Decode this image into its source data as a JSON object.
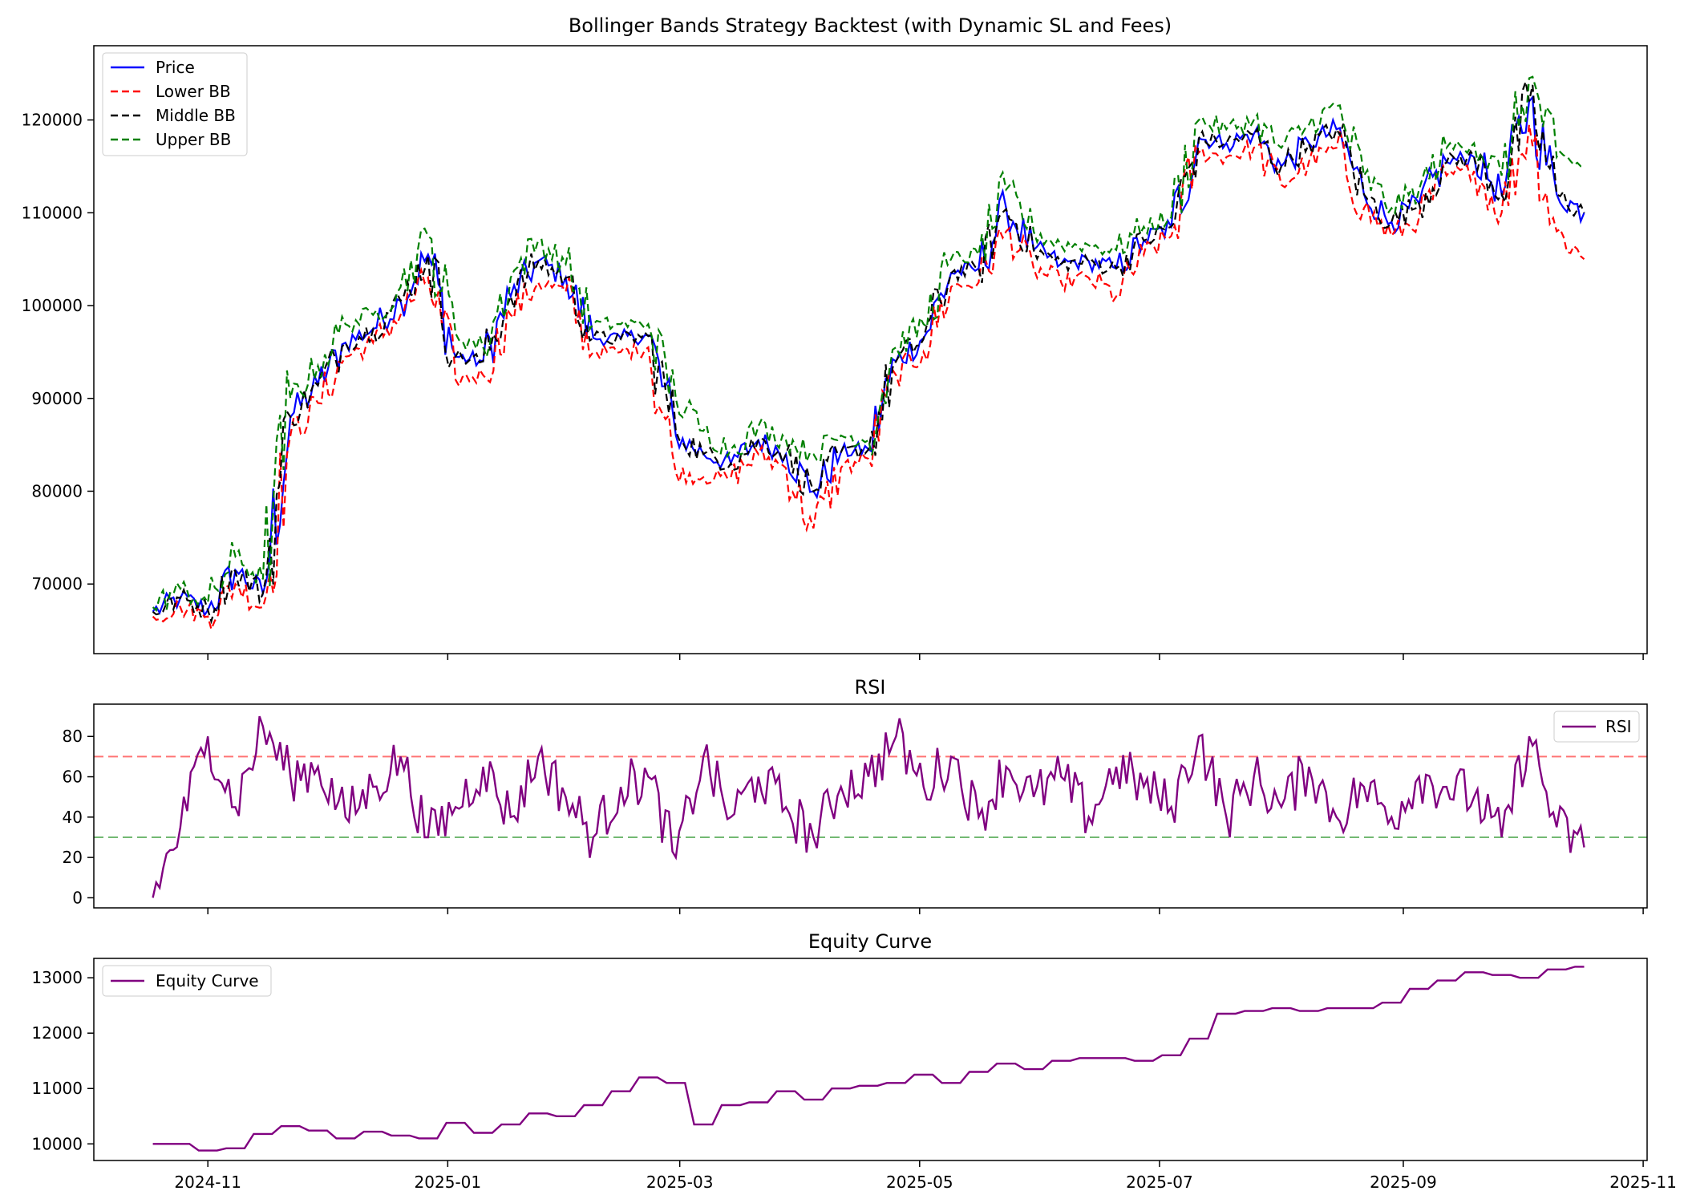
{
  "chart_data": [
    {
      "type": "line",
      "title": "Bollinger Bands Strategy Backtest (with Dynamic SL and Fees)",
      "xlabel": "",
      "ylabel": "",
      "ylim": [
        62500,
        128000
      ],
      "yticks": [
        70000,
        80000,
        90000,
        100000,
        110000,
        120000
      ],
      "grid": false,
      "legend_position": "upper-left",
      "colors": {
        "price": "#0000ff",
        "lower": "#ff0000",
        "middle": "#000000",
        "upper": "#008000",
        "buy_marker": "#0000ff",
        "sell_marker": "#ff0000",
        "exit_marker": "#008000"
      },
      "x_dates": [
        "2024-10-18",
        "2024-10-25",
        "2024-11-01",
        "2024-11-08",
        "2024-11-15",
        "2024-11-22",
        "2024-11-29",
        "2024-12-06",
        "2024-12-13",
        "2024-12-20",
        "2024-12-27",
        "2025-01-03",
        "2025-01-10",
        "2025-01-17",
        "2025-01-24",
        "2025-01-31",
        "2025-02-07",
        "2025-02-14",
        "2025-02-21",
        "2025-02-28",
        "2025-03-07",
        "2025-03-14",
        "2025-03-21",
        "2025-03-28",
        "2025-04-04",
        "2025-04-11",
        "2025-04-18",
        "2025-04-25",
        "2025-05-02",
        "2025-05-09",
        "2025-05-16",
        "2025-05-23",
        "2025-05-30",
        "2025-06-06",
        "2025-06-13",
        "2025-06-20",
        "2025-06-27",
        "2025-07-04",
        "2025-07-11",
        "2025-07-18",
        "2025-07-25",
        "2025-08-01",
        "2025-08-08",
        "2025-08-15",
        "2025-08-22",
        "2025-08-29",
        "2025-09-05",
        "2025-09-12",
        "2025-09-19",
        "2025-09-26",
        "2025-10-03",
        "2025-10-10",
        "2025-10-17"
      ],
      "series": [
        {
          "name": "Price",
          "style": "solid",
          "values": [
            67000,
            68500,
            67200,
            71500,
            69000,
            88000,
            91500,
            96000,
            97500,
            100500,
            105500,
            94500,
            94000,
            101000,
            104800,
            103000,
            96500,
            96500,
            96800,
            86000,
            84000,
            83000,
            85500,
            84000,
            80000,
            84200,
            84500,
            94000,
            96500,
            103500,
            104000,
            110500,
            106000,
            104500,
            104800,
            104000,
            107000,
            108500,
            118000,
            117500,
            118500,
            115000,
            117500,
            119000,
            112000,
            109000,
            111000,
            115500,
            116000,
            112000,
            122000,
            112000,
            110000
          ]
        },
        {
          "name": "Lower BB",
          "style": "dashed",
          "values": [
            66500,
            67500,
            66500,
            70000,
            67500,
            86000,
            89500,
            94500,
            96000,
            99000,
            103000,
            92000,
            92500,
            99000,
            102500,
            101500,
            95000,
            95000,
            95500,
            82000,
            81500,
            81500,
            84000,
            82500,
            76000,
            82500,
            83500,
            92500,
            95000,
            102000,
            102500,
            108000,
            104000,
            102500,
            103000,
            101000,
            105500,
            107500,
            116500,
            116000,
            117000,
            113000,
            115500,
            117000,
            110500,
            107500,
            109500,
            114000,
            114500,
            110000,
            119500,
            108000,
            105000
          ]
        },
        {
          "name": "Middle BB",
          "style": "dashed",
          "values": [
            67000,
            68500,
            67200,
            71400,
            69000,
            88000,
            91400,
            96000,
            97400,
            100500,
            105400,
            94500,
            94000,
            101000,
            104700,
            103000,
            96500,
            96400,
            96700,
            86500,
            84000,
            83000,
            85500,
            84000,
            80000,
            84200,
            84500,
            94000,
            96400,
            103500,
            104000,
            110400,
            106000,
            104500,
            104700,
            104000,
            107000,
            108500,
            118000,
            117500,
            118400,
            115000,
            117400,
            119000,
            112000,
            109000,
            111000,
            115400,
            116000,
            112000,
            122000,
            112000,
            110000
          ]
        },
        {
          "name": "Upper BB",
          "style": "dashed",
          "values": [
            67500,
            69500,
            68000,
            73000,
            70500,
            90000,
            93500,
            98000,
            99000,
            102000,
            107500,
            97000,
            95500,
            103000,
            107000,
            104500,
            98000,
            98000,
            98000,
            90000,
            86500,
            84500,
            87000,
            85500,
            84000,
            86000,
            85500,
            95500,
            98000,
            105000,
            105500,
            112500,
            108000,
            106500,
            106500,
            106000,
            108500,
            109500,
            120000,
            119000,
            120000,
            117000,
            119500,
            121500,
            114000,
            110500,
            112500,
            117000,
            117500,
            114000,
            124500,
            116000,
            115000
          ]
        }
      ]
    },
    {
      "type": "line",
      "title": "RSI",
      "xlabel": "",
      "ylabel": "",
      "ylim": [
        -5,
        96
      ],
      "yticks": [
        0,
        20,
        40,
        60,
        80
      ],
      "grid": false,
      "legend_position": "upper-right",
      "reference_lines": [
        {
          "y": 70,
          "color": "#ff0000"
        },
        {
          "y": 30,
          "color": "#008000"
        }
      ],
      "colors": {
        "rsi": "#800080"
      },
      "x_dates": [
        "2024-10-18",
        "2024-10-25",
        "2024-11-01",
        "2024-11-08",
        "2024-11-15",
        "2024-11-22",
        "2024-11-29",
        "2024-12-06",
        "2024-12-13",
        "2024-12-20",
        "2024-12-27",
        "2025-01-03",
        "2025-01-10",
        "2025-01-17",
        "2025-01-24",
        "2025-01-31",
        "2025-02-07",
        "2025-02-14",
        "2025-02-21",
        "2025-02-28",
        "2025-03-07",
        "2025-03-14",
        "2025-03-21",
        "2025-03-28",
        "2025-04-04",
        "2025-04-11",
        "2025-04-18",
        "2025-04-25",
        "2025-05-02",
        "2025-05-09",
        "2025-05-16",
        "2025-05-23",
        "2025-05-30",
        "2025-06-06",
        "2025-06-13",
        "2025-06-20",
        "2025-06-27",
        "2025-07-04",
        "2025-07-11",
        "2025-07-18",
        "2025-07-25",
        "2025-08-01",
        "2025-08-08",
        "2025-08-15",
        "2025-08-22",
        "2025-08-29",
        "2025-09-05",
        "2025-09-12",
        "2025-09-19",
        "2025-09-26",
        "2025-10-03",
        "2025-10-10",
        "2025-10-17"
      ],
      "series": [
        {
          "name": "RSI",
          "values": [
            0,
            35,
            80,
            45,
            85,
            60,
            65,
            40,
            55,
            70,
            30,
            45,
            65,
            40,
            70,
            50,
            30,
            55,
            60,
            20,
            70,
            40,
            60,
            45,
            30,
            55,
            60,
            80,
            55,
            70,
            40,
            65,
            50,
            60,
            40,
            65,
            55,
            45,
            80,
            40,
            60,
            45,
            65,
            40,
            55,
            40,
            60,
            55,
            50,
            30,
            80,
            35,
            25
          ]
        }
      ]
    },
    {
      "type": "line",
      "title": "Equity Curve",
      "xlabel": "",
      "ylabel": "",
      "ylim": [
        9700,
        13350
      ],
      "yticks": [
        10000,
        11000,
        12000,
        13000
      ],
      "grid": false,
      "legend_position": "upper-left",
      "colors": {
        "equity": "#800080"
      },
      "x_dates": [
        "2024-10-18",
        "2024-10-25",
        "2024-11-01",
        "2024-11-08",
        "2024-11-15",
        "2024-11-22",
        "2024-11-29",
        "2024-12-06",
        "2024-12-13",
        "2024-12-20",
        "2024-12-27",
        "2025-01-03",
        "2025-01-10",
        "2025-01-17",
        "2025-01-24",
        "2025-01-31",
        "2025-02-07",
        "2025-02-14",
        "2025-02-21",
        "2025-02-28",
        "2025-03-07",
        "2025-03-14",
        "2025-03-21",
        "2025-03-28",
        "2025-04-04",
        "2025-04-11",
        "2025-04-18",
        "2025-04-25",
        "2025-05-02",
        "2025-05-09",
        "2025-05-16",
        "2025-05-23",
        "2025-05-30",
        "2025-06-06",
        "2025-06-13",
        "2025-06-20",
        "2025-06-27",
        "2025-07-04",
        "2025-07-11",
        "2025-07-18",
        "2025-07-25",
        "2025-08-01",
        "2025-08-08",
        "2025-08-15",
        "2025-08-22",
        "2025-08-29",
        "2025-09-05",
        "2025-09-12",
        "2025-09-19",
        "2025-09-26",
        "2025-10-03",
        "2025-10-10",
        "2025-10-17"
      ],
      "series": [
        {
          "name": "Equity Curve",
          "values": [
            10000,
            10000,
            9880,
            9920,
            10180,
            10320,
            10240,
            10100,
            10220,
            10150,
            10100,
            10380,
            10200,
            10350,
            10550,
            10500,
            10700,
            10950,
            11200,
            11100,
            10350,
            10700,
            10750,
            10950,
            10800,
            11000,
            11050,
            11100,
            11250,
            11100,
            11300,
            11450,
            11350,
            11500,
            11550,
            11550,
            11500,
            11600,
            11900,
            12350,
            12400,
            12450,
            12400,
            12450,
            12450,
            12550,
            12800,
            12950,
            13100,
            13050,
            13000,
            13150,
            13200
          ]
        }
      ]
    }
  ],
  "x_axis": {
    "tick_labels": [
      "2024-11",
      "2025-01",
      "2025-03",
      "2025-05",
      "2025-07",
      "2025-09",
      "2025-11"
    ],
    "tick_dates": [
      "2024-11-01",
      "2025-01-01",
      "2025-03-01",
      "2025-05-01",
      "2025-07-01",
      "2025-09-01",
      "2025-11-01"
    ],
    "range": [
      "2024-10-03",
      "2025-11-02"
    ]
  }
}
